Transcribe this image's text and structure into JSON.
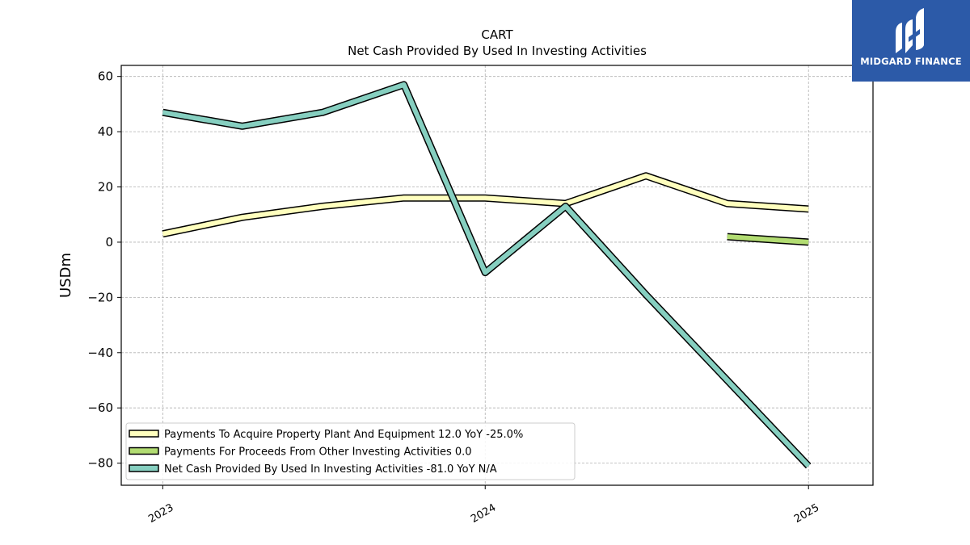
{
  "chart_data": {
    "type": "line",
    "title": "CART",
    "subtitle": "Net Cash Provided By Used In Investing Activities",
    "ylabel": "USDm",
    "xlabel": "",
    "ylim": [
      -88,
      64
    ],
    "xlim": [
      "2022-11-15",
      "2025-03-15"
    ],
    "grid": true,
    "legend_position": "lower-left",
    "x_ticks": [
      "2023-01-01",
      "2024-01-01",
      "2025-01-01"
    ],
    "x_tick_labels": [
      "2023",
      "2024",
      "2025"
    ],
    "y_ticks": [
      60,
      40,
      20,
      0,
      -20,
      -40,
      -60,
      -80
    ],
    "y_tick_labels": [
      "60",
      "40",
      "20",
      "0",
      "−20",
      "−40",
      "−60",
      "−80"
    ],
    "series": [
      {
        "name": "Payments To Acquire Property Plant And Equipment",
        "legend": "Payments To Acquire Property Plant And Equipment  12.0 YoY -25.0%",
        "color": "#ffffbe",
        "x": [
          "2023-01-01",
          "2023-04-01",
          "2023-07-01",
          "2023-10-01",
          "2024-01-01",
          "2024-04-01",
          "2024-07-01",
          "2024-10-01",
          "2025-01-01"
        ],
        "values": [
          3,
          9,
          13,
          16,
          16,
          14,
          24,
          14,
          12
        ]
      },
      {
        "name": "Payments For Proceeds From Other Investing Activities",
        "legend": "Payments For Proceeds From Other Investing Activities  0.0",
        "color": "#b2dc72",
        "x": [
          "2024-10-01",
          "2025-01-01"
        ],
        "values": [
          2,
          0
        ]
      },
      {
        "name": "Net Cash Provided By Used In Investing Activities",
        "legend": "Net Cash Provided By Used In Investing Activities  -81.0 YoY N/A",
        "color": "#86cfc0",
        "x": [
          "2023-01-01",
          "2023-04-01",
          "2023-07-01",
          "2023-10-01",
          "2024-01-01",
          "2024-04-01",
          "2024-07-01",
          "2024-10-01",
          "2025-01-01"
        ],
        "values": [
          47,
          42,
          47,
          57,
          -11,
          13,
          -19,
          -50,
          -81
        ]
      }
    ]
  },
  "logo": {
    "name": "MIDGARD FINANCE",
    "icon": "midgard-m-logo-icon",
    "background": "#2c5aa8"
  }
}
